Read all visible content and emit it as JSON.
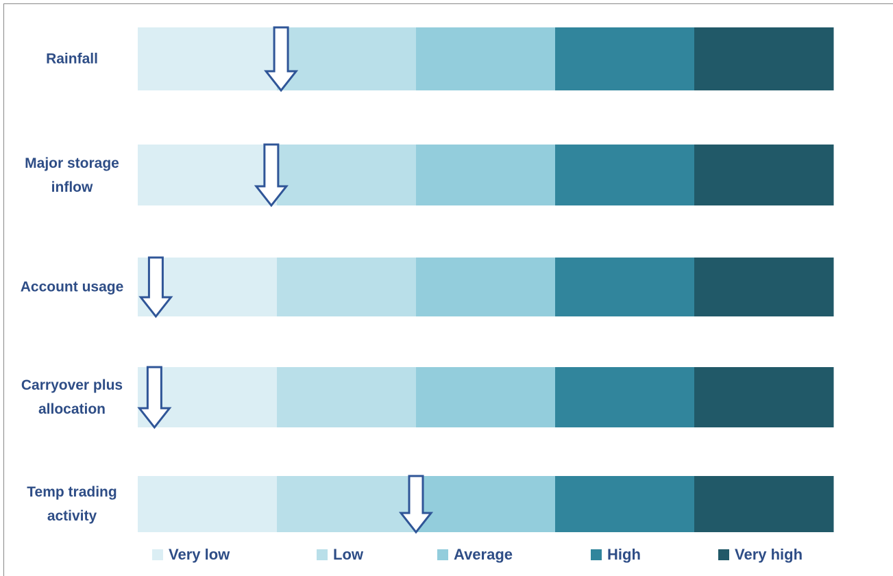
{
  "chart_data": {
    "type": "bullet",
    "categories": [
      "Rainfall",
      "Major storage inflow",
      "Account usage",
      "Carryover plus allocation",
      "Temp trading activity"
    ],
    "bands": [
      {
        "name": "Very low",
        "color": "#dbeef4"
      },
      {
        "name": "Low",
        "color": "#b9dfe9"
      },
      {
        "name": "Average",
        "color": "#93cddc"
      },
      {
        "name": "High",
        "color": "#31859c"
      },
      {
        "name": "Very high",
        "color": "#215968"
      }
    ],
    "xlim": [
      0,
      5
    ],
    "values": [
      1.03,
      0.96,
      0.13,
      0.12,
      2.0
    ],
    "marker_color": "#2f5597"
  }
}
